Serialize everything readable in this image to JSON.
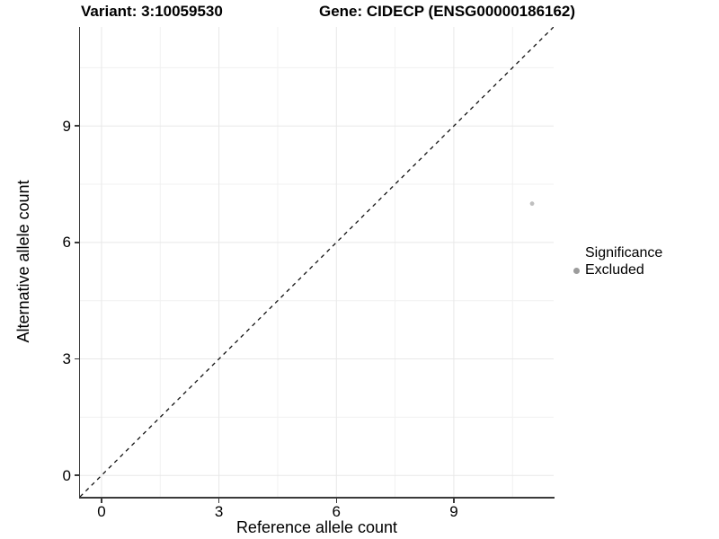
{
  "titles": {
    "variant": "Variant: 3:10059530",
    "gene": "Gene: CIDECP (ENSG00000186162)"
  },
  "chart_data": {
    "type": "scatter",
    "title_left": "Variant: 3:10059530",
    "title_right": "Gene: CIDECP (ENSG00000186162)",
    "xlabel": "Reference allele count",
    "ylabel": "Alternative allele count",
    "xlim": [
      -0.55,
      11.55
    ],
    "ylim": [
      -0.55,
      11.55
    ],
    "x_ticks": [
      0,
      3,
      6,
      9
    ],
    "y_ticks": [
      0,
      3,
      6,
      9
    ],
    "grid": "on",
    "minor_gridlines": [
      1.5,
      4.5,
      7.5,
      10.5
    ],
    "points": [
      {
        "x": 11,
        "y": 7,
        "series": "Excluded"
      }
    ],
    "reference_line": {
      "kind": "identity",
      "slope": 1,
      "intercept": 0,
      "style": "dashed"
    },
    "legend": {
      "title": "Significance",
      "position": "right",
      "entries": [
        {
          "label": "Excluded",
          "marker": "circle",
          "color": "#9c9c9c"
        }
      ]
    }
  },
  "colors": {
    "background": "#ffffff",
    "text": "#000000",
    "axis_line": "#3a3a3a",
    "grid_major": "#e8e8e8",
    "grid_minor": "#f1f1f1",
    "dashed_line": "#111111",
    "point": "#bfbfbf",
    "legend_dot": "#9c9c9c"
  }
}
